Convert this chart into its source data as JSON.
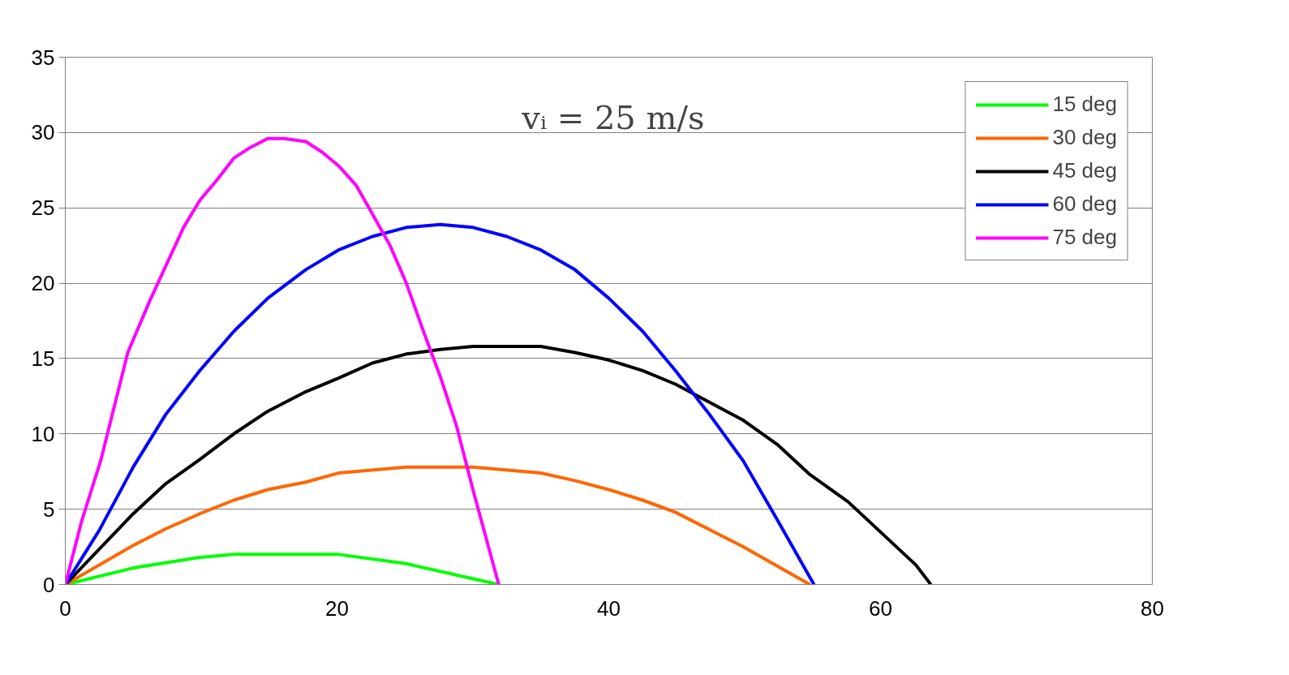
{
  "chart_data": {
    "type": "line",
    "annotations": [
      "vᵢ = 25 m/s"
    ],
    "xlim": [
      0,
      80
    ],
    "xticks": [
      0,
      20,
      40,
      60,
      80
    ],
    "ylim": [
      0,
      35
    ],
    "yticks": [
      0,
      5,
      10,
      15,
      20,
      25,
      30,
      35
    ],
    "grid": "y",
    "legend": "top right",
    "marker": "none",
    "line_style": "solid",
    "series": [
      {
        "name": "15 deg",
        "color": "#00ff00",
        "x": [
          0,
          5,
          9.9,
          12.4,
          20.1,
          25,
          31.9
        ],
        "values": [
          0,
          1.1,
          1.8,
          2,
          2,
          1.4,
          0
        ]
      },
      {
        "name": "30 deg",
        "color": "#ff6600",
        "x": [
          0,
          5,
          7.4,
          9.9,
          12.4,
          14.9,
          17.7,
          20.1,
          25.1,
          30,
          35,
          37.5,
          40,
          42.5,
          44.9,
          49.9,
          54.8
        ],
        "values": [
          0,
          2.6,
          3.7,
          4.7,
          5.6,
          6.3,
          6.8,
          7.4,
          7.8,
          7.8,
          7.4,
          6.9,
          6.3,
          5.6,
          4.8,
          2.5,
          0
        ]
      },
      {
        "name": "45 deg",
        "color": "#000000",
        "x": [
          0,
          5,
          7.4,
          9.9,
          12.4,
          14.9,
          17.7,
          20.1,
          22.6,
          25.1,
          27.6,
          30,
          35,
          37.5,
          40,
          42.5,
          44.9,
          47.4,
          49.9,
          52.4,
          54.8,
          57.6,
          60.1,
          62.6,
          63.7
        ],
        "values": [
          0,
          4.7,
          6.7,
          8.3,
          10,
          11.5,
          12.8,
          13.7,
          14.7,
          15.3,
          15.6,
          15.8,
          15.8,
          15.4,
          14.9,
          14.2,
          13.3,
          12.1,
          10.9,
          9.3,
          7.3,
          5.5,
          3.4,
          1.3,
          0
        ]
      },
      {
        "name": "60 deg",
        "color": "#0000ff",
        "x": [
          0,
          2.5,
          5,
          7.4,
          9.9,
          12.4,
          14.9,
          17.7,
          20.1,
          22.6,
          25.1,
          27.6,
          30,
          32.5,
          35,
          37.5,
          40,
          42.5,
          44.9,
          47.4,
          49.9,
          52.4,
          55.1
        ],
        "values": [
          0,
          3.6,
          7.8,
          11.3,
          14.2,
          16.8,
          19,
          20.9,
          22.2,
          23.1,
          23.7,
          23.9,
          23.7,
          23.1,
          22.2,
          20.9,
          19,
          16.8,
          14.2,
          11.3,
          8.2,
          4.3,
          0
        ]
      },
      {
        "name": "75 deg",
        "color": "#ff00ff",
        "x": [
          0,
          1.2,
          2.6,
          4.6,
          6.2,
          8.7,
          9.9,
          11.2,
          12.4,
          13.6,
          14.9,
          16.1,
          17.7,
          18.9,
          20.1,
          21.4,
          22.6,
          23.9,
          25.1,
          26.4,
          27.6,
          28.8,
          30,
          31.9
        ],
        "values": [
          0,
          4.2,
          8.2,
          15.4,
          18.8,
          23.7,
          25.5,
          26.9,
          28.3,
          29,
          29.6,
          29.6,
          29.4,
          28.7,
          27.8,
          26.5,
          24.6,
          22.5,
          20,
          16.7,
          13.8,
          10.5,
          6.3,
          0
        ]
      }
    ]
  }
}
